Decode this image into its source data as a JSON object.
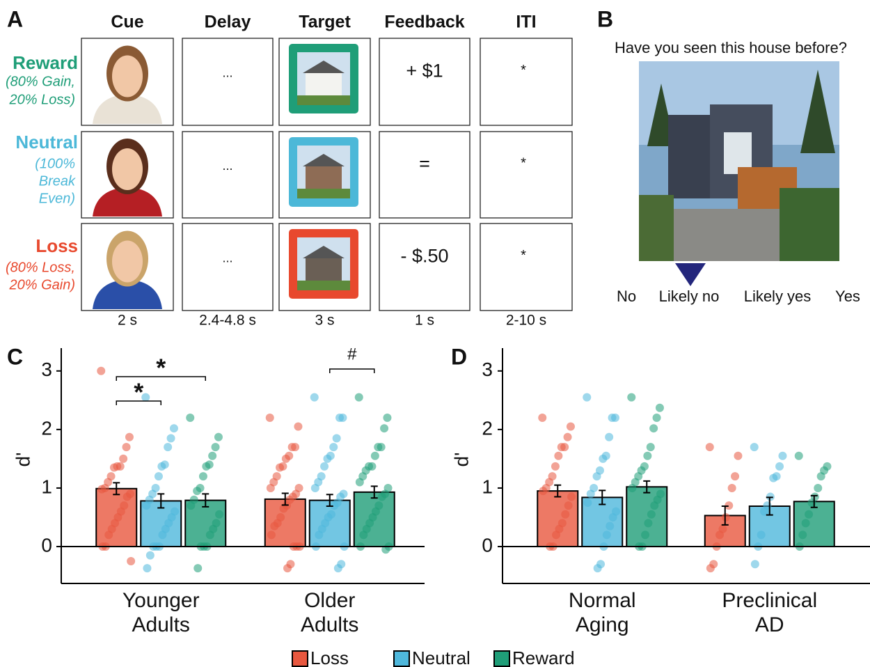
{
  "panel_a": {
    "label": "A",
    "columns": [
      "Cue",
      "Delay",
      "Target",
      "Feedback",
      "ITI"
    ],
    "rows": [
      {
        "name": "Reward",
        "color": "#1f9e78",
        "detail": [
          "(80% Gain,",
          "20% Loss)"
        ],
        "delay": "...",
        "feedback": "+ $1",
        "iti": "*"
      },
      {
        "name": "Neutral",
        "color": "#4cb8d8",
        "detail": [
          "(100%",
          "Break",
          "Even)"
        ],
        "delay": "...",
        "feedback": "=",
        "iti": "*"
      },
      {
        "name": "Loss",
        "color": "#e8492e",
        "detail": [
          "(80% Loss,",
          "20% Gain)"
        ],
        "delay": "...",
        "feedback": "- $.50",
        "iti": "*"
      }
    ],
    "durations": [
      "2 s",
      "2.4-4.8 s",
      "3 s",
      "1 s",
      "2-10 s"
    ]
  },
  "panel_b": {
    "label": "B",
    "question": "Have you seen this house before?",
    "scale": [
      "No",
      "Likely no",
      "Likely yes",
      "Yes"
    ]
  },
  "chart_data": [
    {
      "type": "bar",
      "panel_label": "C",
      "ylabel": "d'",
      "categories": [
        "Younger Adults",
        "Older Adults"
      ],
      "ylim": [
        -0.63,
        3.39
      ],
      "yticks": [
        0,
        1,
        2,
        3
      ],
      "legend": "bottom",
      "annotations": [
        "*",
        "*",
        "#"
      ],
      "series": [
        {
          "name": "Loss",
          "color": "#e8583f",
          "values": [
            0.99,
            0.81
          ],
          "errors": [
            0.1,
            0.1
          ],
          "points": [
            [
              3.0,
              1.87,
              1.7,
              1.5,
              1.37,
              1.37,
              1.35,
              1.2,
              1.1,
              1.0,
              0.98,
              0.9,
              0.85,
              0.7,
              0.6,
              0.5,
              0.4,
              0.3,
              0.2,
              0.0,
              0.0,
              -0.25
            ],
            [
              2.2,
              2.05,
              1.7,
              1.7,
              1.55,
              1.5,
              1.37,
              1.35,
              1.2,
              1.1,
              1.0,
              1.0,
              0.9,
              0.85,
              0.8,
              0.7,
              0.65,
              0.5,
              0.4,
              0.35,
              0.2,
              0.0,
              0.0,
              0.0,
              -0.3,
              -0.37
            ]
          ]
        },
        {
          "name": "Neutral",
          "color": "#4fb8dc",
          "values": [
            0.78,
            0.79
          ],
          "errors": [
            0.12,
            0.1
          ],
          "points": [
            [
              2.55,
              2.02,
              1.85,
              1.7,
              1.4,
              1.37,
              1.2,
              1.0,
              0.9,
              0.8,
              0.7,
              0.6,
              0.5,
              0.4,
              0.3,
              0.2,
              0.0,
              0.0,
              0.0,
              -0.15,
              -0.37
            ],
            [
              2.55,
              2.2,
              2.2,
              1.85,
              1.7,
              1.55,
              1.5,
              1.37,
              1.2,
              1.1,
              1.0,
              0.9,
              0.85,
              0.75,
              0.7,
              0.55,
              0.5,
              0.4,
              0.3,
              0.2,
              0.0,
              0.0,
              -0.3,
              -0.37
            ]
          ]
        },
        {
          "name": "Reward",
          "color": "#1f9e78",
          "values": [
            0.79,
            0.93
          ],
          "errors": [
            0.11,
            0.1
          ],
          "points": [
            [
              2.2,
              1.87,
              1.7,
              1.55,
              1.4,
              1.37,
              1.2,
              1.0,
              0.95,
              0.8,
              0.7,
              0.55,
              0.4,
              0.3,
              0.2,
              0.0,
              0.0,
              0.0,
              -0.37
            ],
            [
              2.55,
              2.2,
              2.02,
              1.7,
              1.7,
              1.55,
              1.37,
              1.37,
              1.3,
              1.2,
              1.1,
              1.0,
              0.9,
              0.85,
              0.7,
              0.6,
              0.5,
              0.4,
              0.3,
              0.2,
              0.0,
              0.0,
              -0.05
            ]
          ]
        }
      ]
    },
    {
      "type": "bar",
      "panel_label": "D",
      "ylabel": "d'",
      "categories": [
        "Normal Aging",
        "Preclinical AD"
      ],
      "ylim": [
        -0.63,
        3.39
      ],
      "yticks": [
        0,
        1,
        2,
        3
      ],
      "series": [
        {
          "name": "Loss",
          "color": "#e8583f",
          "values": [
            0.95,
            0.53
          ],
          "errors": [
            0.1,
            0.16
          ],
          "points": [
            [
              2.2,
              2.05,
              1.87,
              1.7,
              1.7,
              1.55,
              1.37,
              1.2,
              1.1,
              1.0,
              0.95,
              0.85,
              0.7,
              0.55,
              0.4,
              0.3,
              0.2,
              0.0,
              0.0
            ],
            [
              1.7,
              1.55,
              1.2,
              1.0,
              0.7,
              0.5,
              0.3,
              0.2,
              0.0,
              -0.3,
              -0.37
            ]
          ]
        },
        {
          "name": "Neutral",
          "color": "#4fb8dc",
          "values": [
            0.84,
            0.69
          ],
          "errors": [
            0.12,
            0.15
          ],
          "points": [
            [
              2.55,
              2.2,
              2.2,
              1.87,
              1.55,
              1.5,
              1.3,
              1.2,
              1.0,
              0.9,
              0.75,
              0.6,
              0.5,
              0.35,
              0.2,
              0.0,
              -0.3,
              -0.37
            ],
            [
              1.7,
              1.55,
              1.37,
              1.2,
              1.17,
              0.85,
              0.7,
              0.6,
              0.2,
              0.0,
              -0.3
            ]
          ]
        },
        {
          "name": "Reward",
          "color": "#1f9e78",
          "values": [
            1.02,
            0.77
          ],
          "errors": [
            0.1,
            0.1
          ],
          "points": [
            [
              2.55,
              2.37,
              2.2,
              2.02,
              1.7,
              1.55,
              1.37,
              1.3,
              1.2,
              1.1,
              1.0,
              0.9,
              0.8,
              0.7,
              0.55,
              0.4,
              0.2,
              0.0,
              0.0
            ],
            [
              1.55,
              1.37,
              1.3,
              1.2,
              1.0,
              0.85,
              0.75,
              0.55,
              0.4,
              0.2,
              0.0
            ]
          ]
        }
      ]
    }
  ]
}
